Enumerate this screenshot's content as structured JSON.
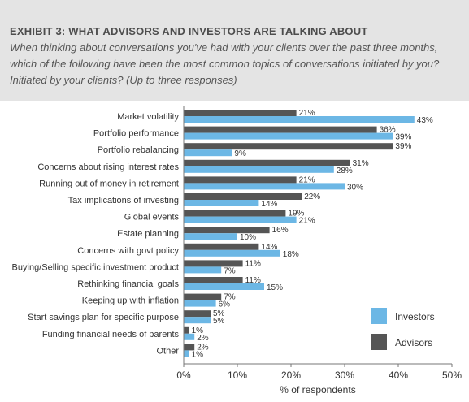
{
  "header": {
    "title": "EXHIBIT 3: WHAT ADVISORS AND INVESTORS ARE TALKING ABOUT",
    "subtitle": "When thinking about conversations you've had with your clients over the past three months, which of the following have been the most common topics of conversations initiated by you? Initiated by your clients? (Up to three responses)"
  },
  "colors": {
    "header_bg": "#e4e4e4",
    "investors": "#6cb7e5",
    "advisors": "#555555",
    "axis": "#777777",
    "text": "#333333"
  },
  "chart_data": {
    "type": "bar",
    "orientation": "horizontal",
    "categories": [
      "Market volatility",
      "Portfolio performance",
      "Portfolio rebalancing",
      "Concerns about rising interest rates",
      "Running out of money in retirement",
      "Tax implications of investing",
      "Global events",
      "Estate planning",
      "Concerns with govt policy",
      "Buying/Selling specific investment product",
      "Rethinking financial goals",
      "Keeping up with inflation",
      "Start savings plan for specific purpose",
      "Funding financial needs of parents",
      "Other"
    ],
    "series": [
      {
        "name": "Advisors",
        "values": [
          21,
          36,
          39,
          31,
          21,
          22,
          19,
          16,
          14,
          11,
          11,
          7,
          5,
          1,
          2
        ]
      },
      {
        "name": "Investors",
        "values": [
          43,
          39,
          9,
          28,
          30,
          14,
          21,
          10,
          18,
          7,
          15,
          6,
          5,
          2,
          1
        ]
      }
    ],
    "value_labels_suffix": "%",
    "xlabel": "% of respondents",
    "xlim": [
      0,
      50
    ],
    "xticks": [
      "0%",
      "10%",
      "20%",
      "30%",
      "40%",
      "50%"
    ],
    "grid": false,
    "legend": {
      "position": "bottom-right",
      "entries": [
        {
          "name": "Investors"
        },
        {
          "name": "Advisors"
        }
      ]
    }
  }
}
